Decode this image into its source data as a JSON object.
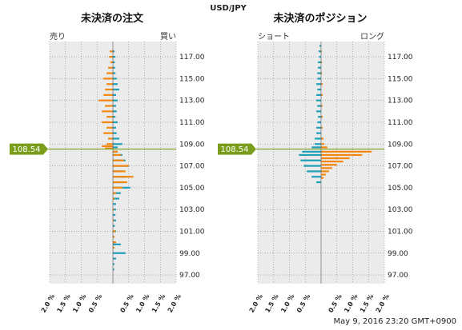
{
  "currency_pair": "USD/JPY",
  "timestamp": "May 9, 2016 23:20 GMT+0900",
  "current_price": "108.54",
  "colors": {
    "sell": "#1f9fb8",
    "buy": "#f4870f",
    "plot_bg": "#ebebeb",
    "price_line": "#7a9e1b",
    "grid": "#888888"
  },
  "y_ticks": [
    "117.00",
    "115.00",
    "113.00",
    "111.00",
    "109.00",
    "107.00",
    "105.00",
    "103.00",
    "101.00",
    "99.00",
    "97.00"
  ],
  "x_ticks": [
    "2.0 %",
    "1.5 %",
    "1.0 %",
    "0.5 %",
    "0.5 %",
    "1.0 %",
    "1.5 %",
    "2.0 %"
  ],
  "chart_data": [
    {
      "type": "bar",
      "title": "未決済の注文",
      "left_label": "売り",
      "right_label": "買い",
      "ylim": [
        96.2,
        118.4
      ],
      "xlim": [
        -2.0,
        2.0
      ],
      "grid": true,
      "series": [
        {
          "name": "売り",
          "color": "#1f9fb8",
          "points": [
            [
              117.5,
              0.05
            ],
            [
              117.0,
              0.08
            ],
            [
              116.5,
              0.06
            ],
            [
              116.0,
              0.07
            ],
            [
              115.5,
              0.08
            ],
            [
              115.0,
              0.12
            ],
            [
              114.5,
              0.15
            ],
            [
              114.0,
              0.2
            ],
            [
              113.5,
              0.1
            ],
            [
              113.0,
              0.15
            ],
            [
              112.5,
              0.1
            ],
            [
              112.0,
              0.12
            ],
            [
              111.5,
              0.08
            ],
            [
              111.0,
              0.15
            ],
            [
              110.5,
              0.1
            ],
            [
              110.0,
              0.12
            ],
            [
              109.5,
              0.2
            ],
            [
              109.0,
              0.3
            ],
            [
              108.7,
              0.15
            ],
            [
              108.3,
              0.15
            ],
            [
              108.0,
              0.3
            ],
            [
              107.5,
              0.4
            ],
            [
              107.0,
              0.5
            ],
            [
              106.5,
              0.35
            ],
            [
              106.0,
              0.4
            ],
            [
              105.5,
              0.35
            ],
            [
              105.0,
              0.55
            ],
            [
              104.5,
              0.25
            ],
            [
              104.0,
              0.2
            ],
            [
              103.5,
              0.1
            ],
            [
              103.0,
              0.1
            ],
            [
              102.5,
              0.08
            ],
            [
              102.0,
              0.1
            ],
            [
              101.5,
              0.06
            ],
            [
              101.0,
              0.1
            ],
            [
              100.5,
              0.05
            ],
            [
              100.0,
              0.08
            ],
            [
              99.8,
              0.25
            ],
            [
              99.0,
              0.4
            ],
            [
              98.5,
              0.1
            ],
            [
              98.0,
              0.05
            ],
            [
              97.5,
              0.04
            ]
          ]
        },
        {
          "name": "買い",
          "color": "#f4870f",
          "points": [
            [
              117.5,
              -0.1
            ],
            [
              117.0,
              -0.12
            ],
            [
              116.5,
              -0.08
            ],
            [
              116.0,
              -0.15
            ],
            [
              115.5,
              -0.2
            ],
            [
              115.0,
              -0.3
            ],
            [
              114.5,
              -0.2
            ],
            [
              114.0,
              -0.25
            ],
            [
              113.5,
              -0.3
            ],
            [
              113.0,
              -0.45
            ],
            [
              112.5,
              -0.25
            ],
            [
              112.0,
              -0.35
            ],
            [
              111.5,
              -0.2
            ],
            [
              111.0,
              -0.35
            ],
            [
              110.5,
              -0.2
            ],
            [
              110.0,
              -0.3
            ],
            [
              109.5,
              -0.15
            ],
            [
              109.0,
              -0.2
            ],
            [
              108.8,
              -0.35
            ],
            [
              108.6,
              -0.25
            ],
            [
              108.3,
              0.15
            ],
            [
              108.0,
              0.25
            ],
            [
              107.5,
              0.35
            ],
            [
              107.0,
              0.5
            ],
            [
              106.5,
              0.4
            ],
            [
              106.0,
              0.65
            ],
            [
              105.5,
              0.45
            ],
            [
              105.0,
              0.3
            ],
            [
              104.5,
              0.1
            ],
            [
              104.0,
              0.05
            ],
            [
              103.0,
              0.03
            ],
            [
              102.0,
              0.03
            ],
            [
              101.0,
              0.08
            ],
            [
              100.5,
              0.05
            ],
            [
              100.0,
              0.1
            ],
            [
              99.5,
              0.05
            ]
          ]
        }
      ]
    },
    {
      "type": "bar",
      "title": "未決済のポジション",
      "left_label": "ショート",
      "right_label": "ロング",
      "ylim": [
        96.2,
        118.4
      ],
      "xlim": [
        -2.0,
        2.0
      ],
      "grid": true,
      "series": [
        {
          "name": "ショート",
          "color": "#1f9fb8",
          "points": [
            [
              118.0,
              -0.05
            ],
            [
              117.5,
              -0.08
            ],
            [
              117.0,
              -0.06
            ],
            [
              116.5,
              -0.1
            ],
            [
              116.0,
              -0.1
            ],
            [
              115.5,
              -0.12
            ],
            [
              115.0,
              -0.12
            ],
            [
              114.5,
              -0.15
            ],
            [
              114.0,
              -0.12
            ],
            [
              113.5,
              -0.15
            ],
            [
              113.0,
              -0.15
            ],
            [
              112.5,
              -0.12
            ],
            [
              112.0,
              -0.15
            ],
            [
              111.5,
              -0.1
            ],
            [
              111.0,
              -0.12
            ],
            [
              110.5,
              -0.15
            ],
            [
              110.0,
              -0.15
            ],
            [
              109.5,
              -0.2
            ],
            [
              109.0,
              -0.2
            ],
            [
              108.7,
              -0.3
            ],
            [
              108.3,
              -0.6
            ],
            [
              108.0,
              -0.7
            ],
            [
              107.5,
              -0.65
            ],
            [
              107.0,
              -0.55
            ],
            [
              106.5,
              -0.45
            ],
            [
              106.0,
              -0.3
            ],
            [
              105.5,
              -0.15
            ]
          ]
        },
        {
          "name": "ロング",
          "color": "#f4870f",
          "points": [
            [
              117.5,
              0.02
            ],
            [
              116.5,
              0.03
            ],
            [
              115.5,
              0.03
            ],
            [
              114.5,
              0.05
            ],
            [
              113.5,
              0.05
            ],
            [
              112.5,
              0.05
            ],
            [
              111.5,
              0.05
            ],
            [
              110.5,
              0.05
            ],
            [
              109.5,
              0.08
            ],
            [
              109.0,
              0.1
            ],
            [
              108.7,
              0.2
            ],
            [
              108.3,
              1.6
            ],
            [
              108.0,
              1.3
            ],
            [
              107.7,
              0.9
            ],
            [
              107.4,
              0.7
            ],
            [
              107.1,
              0.5
            ],
            [
              106.8,
              0.35
            ],
            [
              106.5,
              0.25
            ],
            [
              106.2,
              0.15
            ],
            [
              105.9,
              0.08
            ]
          ]
        }
      ]
    }
  ]
}
